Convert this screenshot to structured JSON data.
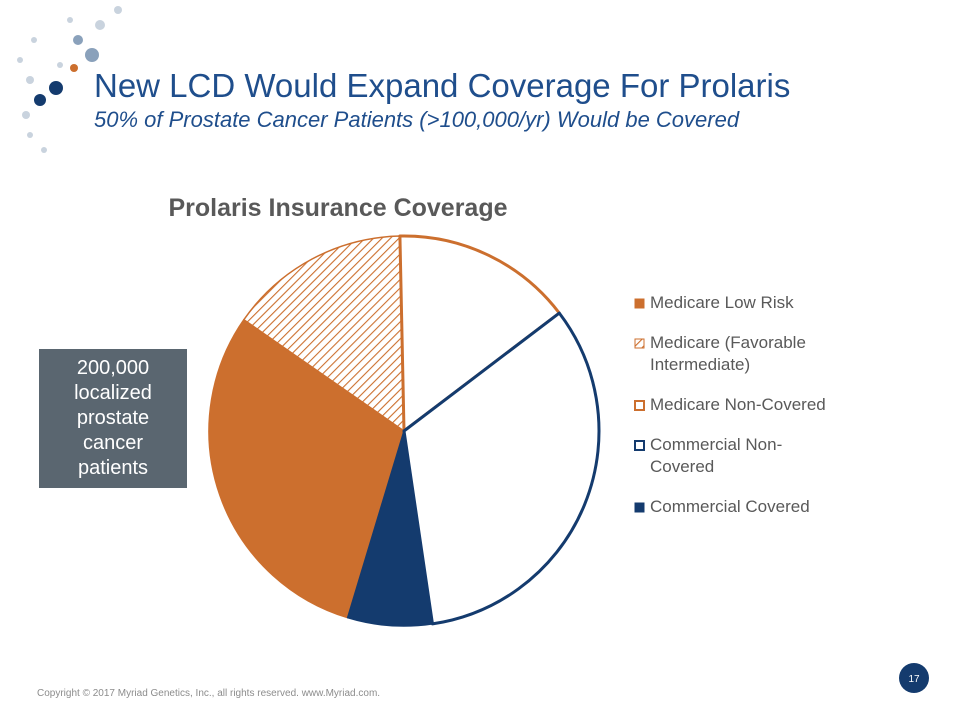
{
  "header": {
    "title": "New LCD Would Expand Coverage For Prolaris",
    "subtitle": "50% of Prostate Cancer Patients (>100,000/yr) Would be Covered"
  },
  "chart_data": {
    "type": "pie",
    "title": "Prolaris Insurance Coverage",
    "series": [
      {
        "name": "Medicare Low Risk",
        "color": "#cc6f2e",
        "style": "solid",
        "values": [
          30
        ]
      },
      {
        "name": "Medicare (Favorable Intermediate)",
        "color": "#cc6f2e",
        "style": "hatch",
        "values": [
          15
        ]
      },
      {
        "name": "Medicare Non-Covered",
        "color": "#cc6f2e",
        "style": "outline",
        "values": [
          15
        ]
      },
      {
        "name": "Commercial Non-Covered",
        "color": "#143b6e",
        "style": "outline",
        "values": [
          33
        ]
      },
      {
        "name": "Commercial Covered",
        "color": "#143b6e",
        "style": "solid",
        "values": [
          7
        ]
      }
    ]
  },
  "callout": "200,000 localized prostate cancer patients",
  "footer": {
    "copyright": "Copyright © 2017 Myriad Genetics, Inc., all rights reserved.  www.Myriad.com.",
    "page": "17"
  }
}
